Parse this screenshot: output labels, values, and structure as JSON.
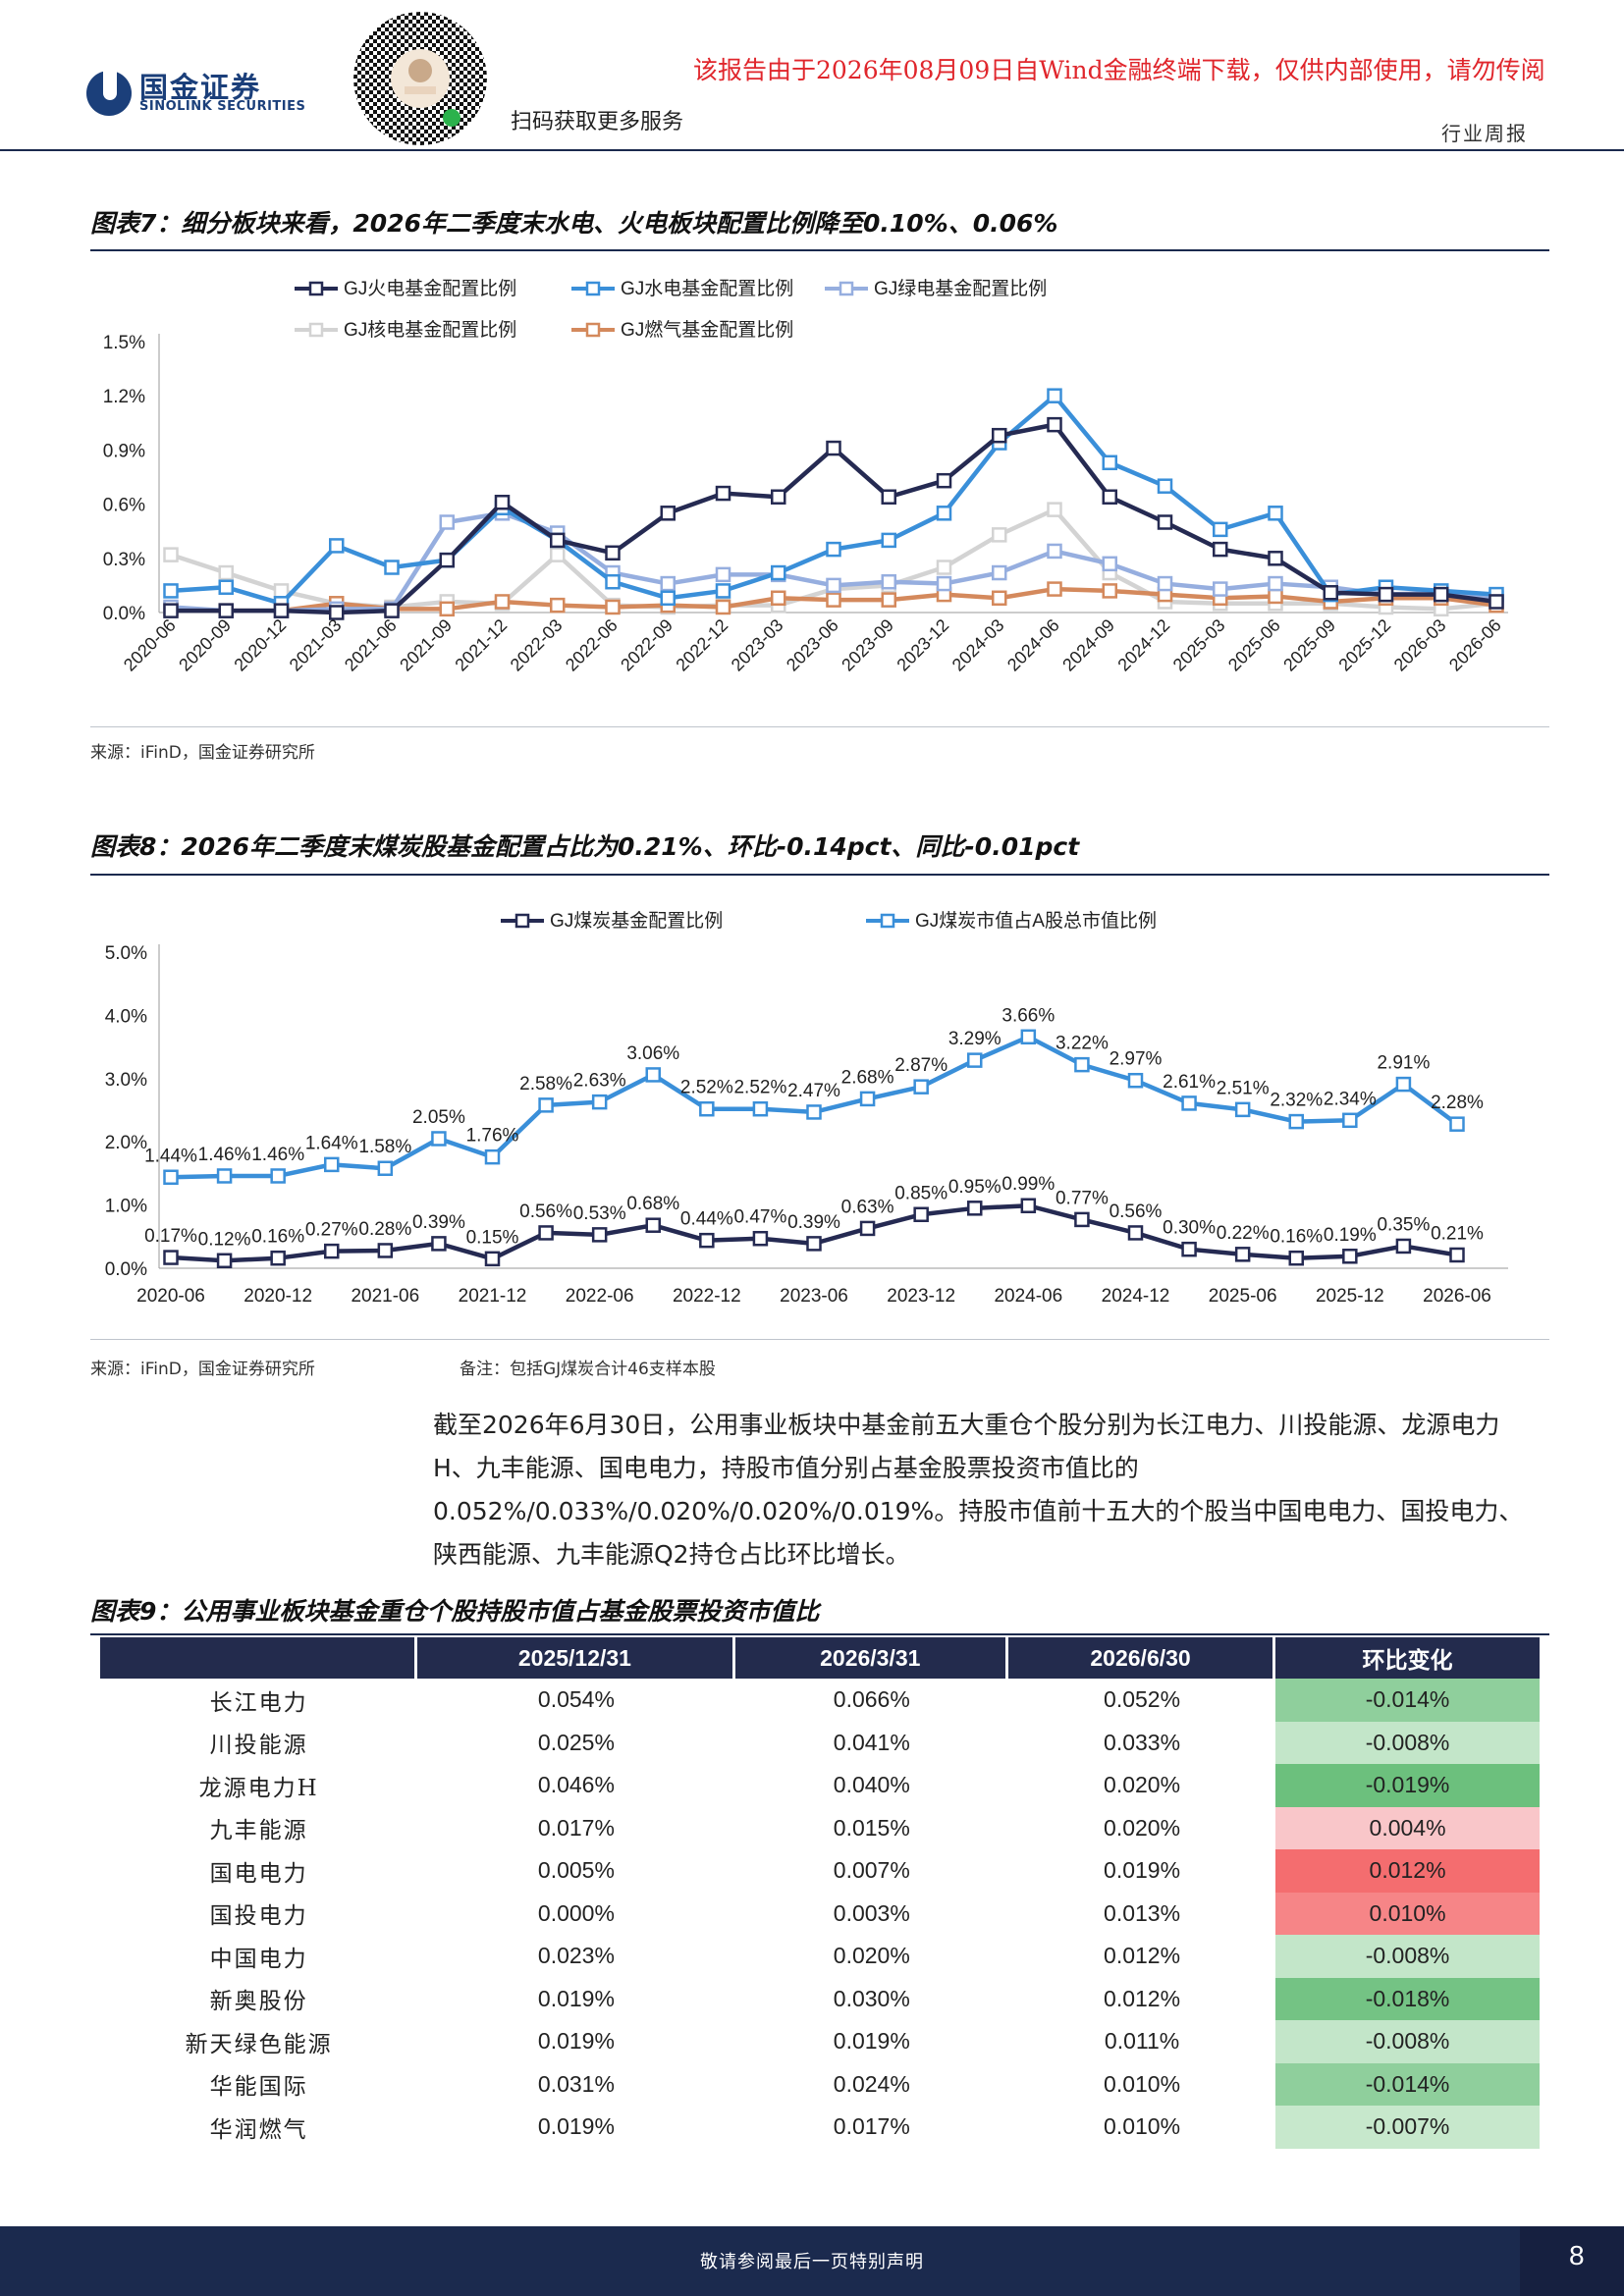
{
  "header": {
    "brand_cn": "国金证券",
    "brand_en": "SINOLINK SECURITIES",
    "scan_text": "扫码获取更多服务",
    "download_notice": "该报告由于2026年08月09日自Wind金融终端下载，仅供内部使用，请勿传阅",
    "report_type": "行业周报",
    "brand_color": "#1b3f7a",
    "notice_color": "#e0262c"
  },
  "figure7": {
    "title": "图表7：细分板块来看，2026年二季度末水电、火电板块配置比例降至0.10%、0.06%",
    "source": "来源：iFinD，国金证券研究所"
  },
  "figure8": {
    "title": "图表8：2026年二季度末煤炭股基金配置占比为0.21%、环比-0.14pct、同比-0.01pct",
    "source": "来源：iFinD，国金证券研究所",
    "note": "备注：包括GJ煤炭合计46支样本股"
  },
  "paragraph": "截至2026年6月30日，公用事业板块中基金前五大重仓个股分别为长江电力、川投能源、龙源电力H、九丰能源、国电电力，持股市值分别占基金股票投资市值比的0.052%/0.033%/0.020%/0.020%/0.019%。持股市值前十五大的个股当中国电电力、国投电力、陕西能源、九丰能源Q2持仓占比环比增长。",
  "figure9": {
    "title": "图表9：公用事业板块基金重仓个股持股市值占基金股票投资市值比"
  },
  "table": {
    "headers": [
      "",
      "2025/12/31",
      "2026/3/31",
      "2026/6/30",
      "环比变化"
    ],
    "rows": [
      {
        "name": "长江电力",
        "v1": "0.054%",
        "v2": "0.066%",
        "v3": "0.052%",
        "chg": "-0.014%",
        "color": "#8fcf9c"
      },
      {
        "name": "川投能源",
        "v1": "0.025%",
        "v2": "0.041%",
        "v3": "0.033%",
        "chg": "-0.008%",
        "color": "#c3e6c9"
      },
      {
        "name": "龙源电力H",
        "v1": "0.046%",
        "v2": "0.040%",
        "v3": "0.020%",
        "chg": "-0.019%",
        "color": "#6cc07d"
      },
      {
        "name": "九丰能源",
        "v1": "0.017%",
        "v2": "0.015%",
        "v3": "0.020%",
        "chg": "0.004%",
        "color": "#f9c6c9"
      },
      {
        "name": "国电电力",
        "v1": "0.005%",
        "v2": "0.007%",
        "v3": "0.019%",
        "chg": "0.012%",
        "color": "#f46d6f"
      },
      {
        "name": "国投电力",
        "v1": "0.000%",
        "v2": "0.003%",
        "v3": "0.013%",
        "chg": "0.010%",
        "color": "#f68587"
      },
      {
        "name": "中国电力",
        "v1": "0.023%",
        "v2": "0.020%",
        "v3": "0.012%",
        "chg": "-0.008%",
        "color": "#c3e6c9"
      },
      {
        "name": "新奥股份",
        "v1": "0.019%",
        "v2": "0.030%",
        "v3": "0.012%",
        "chg": "-0.018%",
        "color": "#74c384"
      },
      {
        "name": "新天绿色能源",
        "v1": "0.019%",
        "v2": "0.019%",
        "v3": "0.011%",
        "chg": "-0.008%",
        "color": "#c3e6c9"
      },
      {
        "name": "华能国际",
        "v1": "0.031%",
        "v2": "0.024%",
        "v3": "0.010%",
        "chg": "-0.014%",
        "color": "#8fcf9c"
      },
      {
        "name": "华润燃气",
        "v1": "0.019%",
        "v2": "0.017%",
        "v3": "0.010%",
        "chg": "-0.007%",
        "color": "#c7e8cc"
      }
    ]
  },
  "footer": {
    "text": "敬请参阅最后一页特别声明",
    "page_number": "8"
  },
  "chart_data": [
    {
      "type": "line",
      "categories": [
        "2020-06",
        "2020-09",
        "2020-12",
        "2021-03",
        "2021-06",
        "2021-09",
        "2021-12",
        "2022-03",
        "2022-06",
        "2022-09",
        "2022-12",
        "2023-03",
        "2023-06",
        "2023-09",
        "2023-12",
        "2024-03",
        "2024-06",
        "2024-09",
        "2024-12",
        "2025-03",
        "2025-06",
        "2025-09",
        "2025-12",
        "2026-03",
        "2026-06"
      ],
      "yticks": [
        "0.0%",
        "0.3%",
        "0.6%",
        "0.9%",
        "1.2%",
        "1.5%"
      ],
      "ylim": [
        0,
        1.5
      ],
      "legend_position": "top",
      "series": [
        {
          "name": "GJ火电基金配置比例",
          "color": "#252a52",
          "values": [
            0.01,
            0.01,
            0.01,
            0.0,
            0.01,
            0.29,
            0.61,
            0.4,
            0.33,
            0.55,
            0.66,
            0.64,
            0.91,
            0.64,
            0.73,
            0.98,
            1.04,
            0.64,
            0.5,
            0.35,
            0.3,
            0.11,
            0.1,
            0.1,
            0.06
          ]
        },
        {
          "name": "GJ水电基金配置比例",
          "color": "#3a8fd9",
          "values": [
            0.12,
            0.14,
            0.05,
            0.37,
            0.25,
            0.29,
            0.58,
            0.4,
            0.17,
            0.08,
            0.12,
            0.22,
            0.35,
            0.4,
            0.55,
            0.94,
            1.2,
            0.83,
            0.7,
            0.46,
            0.55,
            0.1,
            0.14,
            0.12,
            0.1
          ]
        },
        {
          "name": "GJ绿电基金配置比例",
          "color": "#96aedf",
          "values": [
            0.03,
            0.01,
            0.01,
            0.02,
            0.02,
            0.5,
            0.55,
            0.44,
            0.22,
            0.16,
            0.21,
            0.21,
            0.15,
            0.17,
            0.16,
            0.22,
            0.34,
            0.27,
            0.16,
            0.13,
            0.16,
            0.14,
            0.1,
            0.11,
            0.08
          ]
        },
        {
          "name": "GJ核电基金配置比例",
          "color": "#d3d3d3",
          "values": [
            0.32,
            0.22,
            0.12,
            0.05,
            0.03,
            0.06,
            0.05,
            0.32,
            0.04,
            0.03,
            0.04,
            0.04,
            0.13,
            0.15,
            0.25,
            0.43,
            0.57,
            0.22,
            0.06,
            0.05,
            0.05,
            0.05,
            0.03,
            0.02,
            0.05
          ]
        },
        {
          "name": "GJ燃气基金配置比例",
          "color": "#d4895c",
          "values": [
            0.02,
            0.01,
            0.01,
            0.05,
            0.02,
            0.02,
            0.06,
            0.04,
            0.03,
            0.04,
            0.03,
            0.08,
            0.07,
            0.07,
            0.1,
            0.08,
            0.13,
            0.12,
            0.1,
            0.08,
            0.09,
            0.06,
            0.08,
            0.08,
            0.04
          ]
        }
      ]
    },
    {
      "type": "line",
      "categories": [
        "2020-06",
        "2020-09",
        "2020-12",
        "2021-03",
        "2021-06",
        "2021-09",
        "2021-12",
        "2022-03",
        "2022-06",
        "2022-09",
        "2022-12",
        "2023-03",
        "2023-06",
        "2023-09",
        "2023-12",
        "2024-03",
        "2024-06",
        "2024-09",
        "2024-12",
        "2025-03",
        "2025-06",
        "2025-09",
        "2025-12",
        "2026-03",
        "2026-06"
      ],
      "xtick_labels": [
        "2020-06",
        "2020-12",
        "2021-06",
        "2021-12",
        "2022-06",
        "2022-12",
        "2023-06",
        "2023-12",
        "2024-06",
        "2024-12",
        "2025-06",
        "2025-12",
        "2026-06"
      ],
      "yticks": [
        "0.0%",
        "1.0%",
        "2.0%",
        "3.0%",
        "4.0%",
        "5.0%"
      ],
      "ylim": [
        0,
        5
      ],
      "legend_position": "top",
      "series": [
        {
          "name": "GJ煤炭基金配置比例",
          "color": "#252a52",
          "values": [
            0.17,
            0.12,
            0.16,
            0.27,
            0.28,
            0.39,
            0.15,
            0.56,
            0.53,
            0.68,
            0.44,
            0.47,
            0.39,
            0.63,
            0.85,
            0.95,
            0.99,
            0.77,
            0.56,
            0.3,
            0.22,
            0.16,
            0.19,
            0.35,
            0.21
          ],
          "labels": [
            "0.17%",
            "0.12%",
            "0.16%",
            "0.27%",
            "0.28%",
            "0.39%",
            "0.15%",
            "0.56%",
            "0.53%",
            "0.68%",
            "0.44%",
            "0.47%",
            "0.39%",
            "0.63%",
            "0.85%",
            "0.95%",
            "0.99%",
            "0.77%",
            "0.56%",
            "0.30%",
            "0.22%",
            "0.16%",
            "0.19%",
            "0.35%",
            "0.21%"
          ]
        },
        {
          "name": "GJ煤炭市值占A股总市值比例",
          "color": "#3a8fd9",
          "values": [
            1.44,
            1.46,
            1.46,
            1.64,
            1.58,
            2.05,
            1.76,
            2.58,
            2.63,
            3.06,
            2.52,
            2.52,
            2.47,
            2.68,
            2.87,
            3.29,
            3.66,
            3.22,
            2.97,
            2.61,
            2.51,
            2.32,
            2.34,
            2.91,
            2.28
          ],
          "labels": [
            "1.44%",
            "1.46%",
            "1.46%",
            "1.64%",
            "1.58%",
            "2.05%",
            "1.76%",
            "2.58%",
            "2.63%",
            "3.06%",
            "2.52%",
            "2.52%",
            "2.47%",
            "2.68%",
            "2.87%",
            "3.29%",
            "3.66%",
            "3.22%",
            "2.97%",
            "2.61%",
            "2.51%",
            "2.32%",
            "2.34%",
            "2.91%",
            "2.28%"
          ]
        }
      ]
    }
  ]
}
